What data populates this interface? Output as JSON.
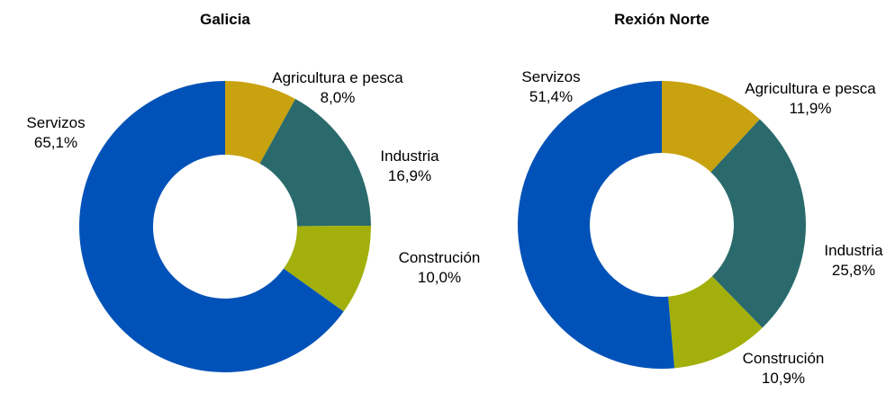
{
  "chart_data": [
    {
      "type": "pie",
      "donut": true,
      "title": "Galicia",
      "categories": [
        "Agricultura e pesca",
        "Industria",
        "Construción",
        "Servizos"
      ],
      "values": [
        8.0,
        16.9,
        10.0,
        65.1
      ],
      "value_labels": [
        "8,0%",
        "16,9%",
        "10,0%",
        "65,1%"
      ],
      "colors": [
        "#c9a20f",
        "#2a6a6c",
        "#a3b00b",
        "#0152b8"
      ]
    },
    {
      "type": "pie",
      "donut": true,
      "title": "Rexión Norte",
      "categories": [
        "Agricultura e pesca",
        "Industria",
        "Construción",
        "Servizos"
      ],
      "values": [
        11.9,
        25.8,
        10.9,
        51.4
      ],
      "value_labels": [
        "11,9%",
        "25,8%",
        "10,9%",
        "51,4%"
      ],
      "colors": [
        "#c9a20f",
        "#2a6a6c",
        "#a3b00b",
        "#0152b8"
      ]
    }
  ]
}
